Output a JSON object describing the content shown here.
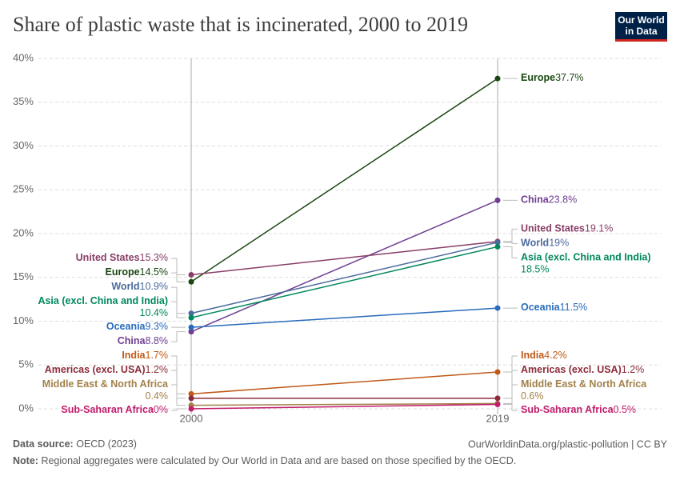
{
  "chart_data": {
    "type": "slope",
    "title": "Share of plastic waste that is incinerated, 2000 to 2019",
    "logo": [
      "Our World",
      "in Data"
    ],
    "source_label": "Data source:",
    "source": "OECD (2023)",
    "url": "OurWorldinData.org/plastic-pollution | CC BY",
    "note_label": "Note:",
    "note": "Regional aggregates were calculated by Our World in Data and are based on those specified by the OECD.",
    "x": [
      2000,
      2019
    ],
    "xlim": [
      2000,
      2019
    ],
    "xticks": [
      2000,
      2019
    ],
    "ylim": [
      0,
      40
    ],
    "yticks": [
      {
        "value": 0,
        "label": "0%"
      },
      {
        "value": 5,
        "label": "5%"
      },
      {
        "value": 10,
        "label": "10%"
      },
      {
        "value": 15,
        "label": "15%"
      },
      {
        "value": 20,
        "label": "20%"
      },
      {
        "value": 25,
        "label": "25%"
      },
      {
        "value": 30,
        "label": "30%"
      },
      {
        "value": 35,
        "label": "35%"
      },
      {
        "value": 40,
        "label": "40%"
      }
    ],
    "grid": true,
    "series": [
      {
        "name": "Europe",
        "color": "#18470f",
        "values": [
          14.5,
          37.7
        ],
        "value_labels": [
          "14.5%",
          "37.7%"
        ]
      },
      {
        "name": "China",
        "color": "#6d3e91",
        "values": [
          8.8,
          23.8
        ],
        "value_labels": [
          "8.8%",
          "23.8%"
        ]
      },
      {
        "name": "United States",
        "color": "#883e67",
        "values": [
          15.3,
          19.1
        ],
        "value_labels": [
          "15.3%",
          "19.1%"
        ]
      },
      {
        "name": "World",
        "color": "#4c6a9c",
        "values": [
          10.9,
          19
        ],
        "value_labels": [
          "10.9%",
          "19%"
        ]
      },
      {
        "name": "Asia (excl. China and India)",
        "color": "#00875e",
        "values": [
          10.4,
          18.5
        ],
        "value_labels": [
          "10.4%",
          "18.5%"
        ]
      },
      {
        "name": "Oceania",
        "color": "#286bbb",
        "values": [
          9.3,
          11.5
        ],
        "value_labels": [
          "9.3%",
          "11.5%"
        ]
      },
      {
        "name": "India",
        "color": "#c05917",
        "values": [
          1.7,
          4.2
        ],
        "value_labels": [
          "1.7%",
          "4.2%"
        ]
      },
      {
        "name": "Americas (excl. USA)",
        "color": "#8c2b3a",
        "values": [
          1.2,
          1.2
        ],
        "value_labels": [
          "1.2%",
          "1.2%"
        ]
      },
      {
        "name": "Middle East & North Africa",
        "color": "#a2814a",
        "values": [
          0.4,
          0.6
        ],
        "value_labels": [
          "0.4%",
          "0.6%"
        ]
      },
      {
        "name": "Sub-Saharan Africa",
        "color": "#c21d6c",
        "values": [
          0,
          0.5
        ],
        "value_labels": [
          "0%",
          "0.5%"
        ]
      }
    ]
  }
}
